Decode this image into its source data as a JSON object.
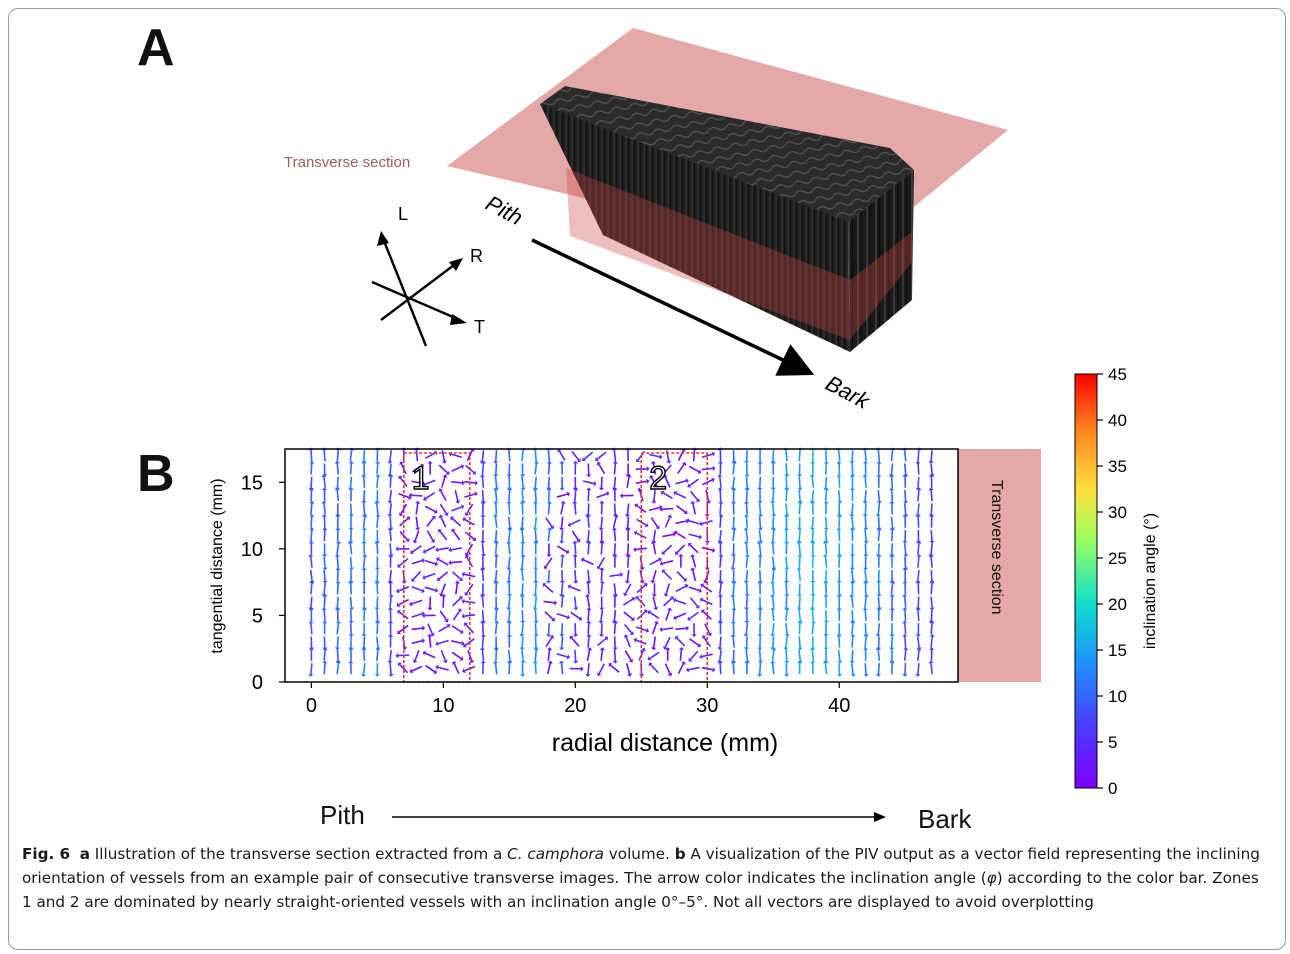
{
  "panel_a": {
    "label": "A",
    "transverse_label": "Transverse section",
    "axes": {
      "l": "L",
      "r": "R",
      "t": "T"
    },
    "pith": "Pith",
    "bark": "Bark"
  },
  "panel_b": {
    "label": "B",
    "side_label": "Transverse section",
    "pith": "Pith",
    "bark": "Bark"
  },
  "caption": {
    "fig": "Fig. 6",
    "a": "a",
    "a_text_1": " Illustration of the transverse section extracted from a ",
    "species": "C. camphora",
    "a_text_2": " volume. ",
    "b": "b",
    "b_text": " A visualization of the PIV output as a vector field representing the inclining orientation of vessels from an example pair of consecutive transverse images. The arrow color indicates the inclination angle (",
    "phi": "φ",
    "rest": ") according to the color bar. Zones 1 and 2 are dominated by nearly straight-oriented vessels with an inclination angle 0°–5°. Not all vectors are displayed to avoid overplotting"
  },
  "colors": {
    "pink": "#e5a8a8",
    "zone_box": "#e0303a",
    "block": "#1c1c1c"
  },
  "chart_data": {
    "type": "quiver",
    "xlabel": "radial distance (mm)",
    "ylabel": "tangential distance (mm)",
    "xlim": [
      -2,
      49
    ],
    "ylim": [
      0,
      17.5
    ],
    "xticks": [
      0,
      10,
      20,
      30,
      40
    ],
    "yticks": [
      0,
      5,
      10,
      15
    ],
    "grid": false,
    "vector_spacing_mm": {
      "x": 1,
      "y": 1
    },
    "zones": [
      {
        "name": "1",
        "x": [
          7,
          12
        ],
        "y": [
          0,
          17.5
        ],
        "angle_range_deg": [
          0,
          5
        ]
      },
      {
        "name": "2",
        "x": [
          25,
          30
        ],
        "y": [
          0,
          17.5
        ],
        "angle_range_deg": [
          0,
          5
        ]
      }
    ],
    "colorbar": {
      "label": "inclination angle (°)",
      "range": [
        0,
        45
      ],
      "ticks": [
        0,
        5,
        10,
        15,
        20,
        25,
        30,
        35,
        40,
        45
      ],
      "colormap": "rainbow"
    },
    "angle_profile_by_x": [
      {
        "x": 0,
        "angle": 9
      },
      {
        "x": 5,
        "angle": 12
      },
      {
        "x": 7,
        "angle": 3
      },
      {
        "x": 12,
        "angle": 2
      },
      {
        "x": 14,
        "angle": 11
      },
      {
        "x": 17,
        "angle": 13
      },
      {
        "x": 20,
        "angle": 6
      },
      {
        "x": 25,
        "angle": 2
      },
      {
        "x": 30,
        "angle": 2
      },
      {
        "x": 32,
        "angle": 11
      },
      {
        "x": 38,
        "angle": 16
      },
      {
        "x": 43,
        "angle": 12
      },
      {
        "x": 47,
        "angle": 7
      }
    ]
  }
}
